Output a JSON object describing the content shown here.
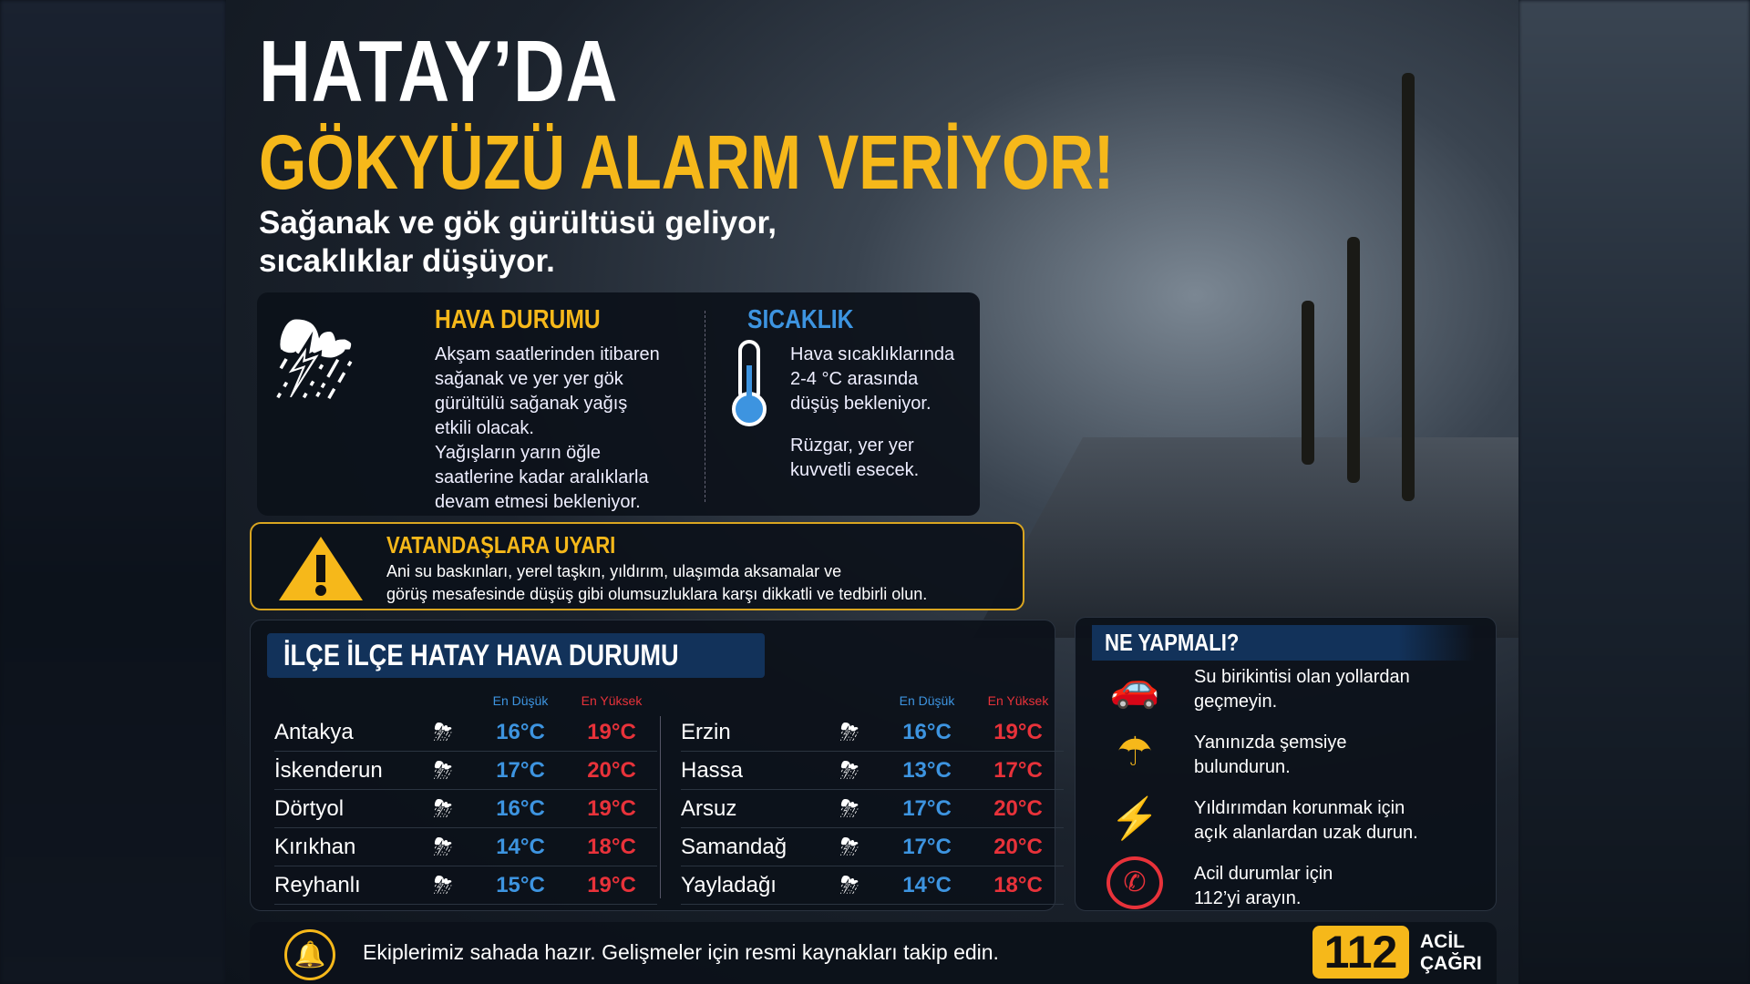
{
  "title": {
    "line1": "HATAY’DA",
    "line2": "GÖKYÜZÜ ALARM VERİYOR!",
    "subtitle1": "Sağanak ve gök gürültüsü geliyor,",
    "subtitle2": "sıcaklıklar düşüyor."
  },
  "weather": {
    "heading": "HAVA DURUMU",
    "lines": [
      "Akşam saatlerinden itibaren",
      "sağanak ve yer yer gök",
      "gürültülü sağanak yağış",
      "etkili olacak.",
      "Yağışların yarın öğle",
      "saatlerine kadar aralıklarla",
      "devam etmesi bekleniyor."
    ],
    "icon": "storm-cloud-icon"
  },
  "temperature": {
    "heading": "SICAKLIK",
    "lines": [
      "Hava sıcaklıklarında",
      "2-4 °C arasında",
      "düşüş bekleniyor."
    ],
    "wind": [
      "Rüzgar, yer yer",
      "kuvvetli esecek."
    ],
    "icon": "thermometer-icon"
  },
  "warning": {
    "heading": "VATANDAŞLARA UYARI",
    "line1": "Ani su baskınları, yerel taşkın, yıldırım, ulaşımda aksamalar ve",
    "line2": "görüş mesafesinde düşüş gibi olumsuzluklara karşı dikkatli ve tedbirli olun."
  },
  "districts": {
    "heading": "İLÇE İLÇE HATAY HAVA DURUMU",
    "low_label": "En Düşük",
    "high_label": "En Yüksek",
    "left": [
      {
        "name": "Antakya",
        "low": "16°C",
        "high": "19°C"
      },
      {
        "name": "İskenderun",
        "low": "17°C",
        "high": "20°C"
      },
      {
        "name": "Dörtyol",
        "low": "16°C",
        "high": "19°C"
      },
      {
        "name": "Kırıkhan",
        "low": "14°C",
        "high": "18°C"
      },
      {
        "name": "Reyhanlı",
        "low": "15°C",
        "high": "19°C"
      }
    ],
    "right": [
      {
        "name": "Erzin",
        "low": "16°C",
        "high": "19°C"
      },
      {
        "name": "Hassa",
        "low": "13°C",
        "high": "17°C"
      },
      {
        "name": "Arsuz",
        "low": "17°C",
        "high": "20°C"
      },
      {
        "name": "Samandağ",
        "low": "17°C",
        "high": "20°C"
      },
      {
        "name": "Yayladağı",
        "low": "14°C",
        "high": "18°C"
      }
    ]
  },
  "tips": {
    "heading": "NE YAPMALI?",
    "items": [
      {
        "l1": "Su birikintisi olan yollardan",
        "l2": "geçmeyin.",
        "icon": "flooded-car-icon"
      },
      {
        "l1": "Yanınızda şemsiye",
        "l2": "bulundurun.",
        "icon": "umbrella-icon"
      },
      {
        "l1": "Yıldırımdan korunmak için",
        "l2": "açık alanlardan uzak durun.",
        "icon": "lightning-icon"
      },
      {
        "l1": "Acil durumlar için",
        "l2": "112’yi arayın.",
        "icon": "phone-icon"
      }
    ]
  },
  "footer": {
    "text": "Ekiplerimiz sahada hazır. Gelişmeler için resmi kaynakları takip edin.",
    "number": "112",
    "label1": "ACİL",
    "label2": "ÇAĞRI"
  },
  "colors": {
    "yellow": "#f6b81a",
    "blue": "#3d94e0",
    "red": "#e8323a",
    "navy": "#12325a"
  }
}
